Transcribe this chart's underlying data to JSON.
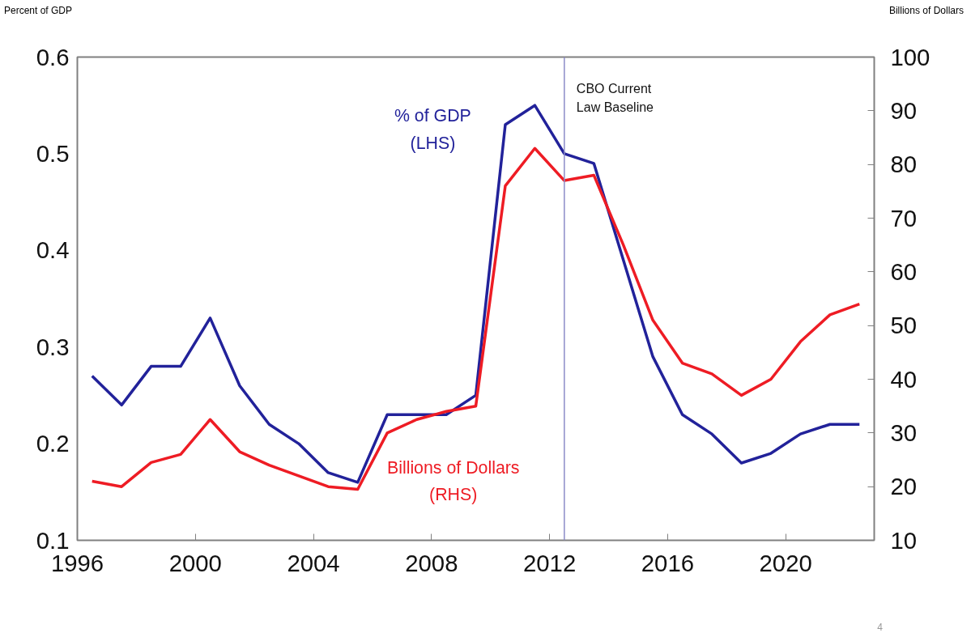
{
  "chart_data": {
    "type": "line",
    "ylabel": "Percent of GDP",
    "y2label": "Billions of Dollars",
    "x": [
      1996.5,
      1997.5,
      1998.5,
      1999.5,
      2000.5,
      2001.5,
      2002.5,
      2003.5,
      2004.5,
      2005.5,
      2006.5,
      2007.5,
      2008.5,
      2009.5,
      2010.5,
      2011.5,
      2012.5,
      2013.5,
      2014.5,
      2015.5,
      2016.5,
      2017.5,
      2018.5,
      2019.5,
      2020.5,
      2021.5,
      2022.5
    ],
    "series": [
      {
        "name": "% of GDP\n(LHS)",
        "color": "#22229a",
        "values": [
          0.27,
          0.24,
          0.28,
          0.28,
          0.33,
          0.26,
          0.22,
          0.2,
          0.17,
          0.16,
          0.23,
          0.23,
          0.23,
          0.25,
          0.53,
          0.55,
          0.5,
          0.49,
          0.39,
          0.29,
          0.23,
          0.21,
          0.18,
          0.19,
          0.21,
          0.22,
          0.22
        ]
      },
      {
        "name": "Billions of Dollars\n(RHS)",
        "color": "#ee1c24",
        "axis": "y2",
        "values": [
          21,
          20,
          24.5,
          26,
          32.5,
          26.5,
          24,
          22,
          20,
          19.5,
          30,
          32.5,
          34,
          35,
          76,
          83,
          77,
          78,
          65,
          51,
          43,
          41,
          37,
          40,
          47,
          52,
          54
        ]
      }
    ],
    "xlim": [
      1996,
      2023
    ],
    "xticks": [
      1996,
      2000,
      2004,
      2008,
      2012,
      2016,
      2020
    ],
    "ylim": [
      0.1,
      0.6
    ],
    "yticks": [
      0.1,
      0.2,
      0.3,
      0.4,
      0.5,
      0.6
    ],
    "y2lim": [
      10,
      100
    ],
    "y2ticks": [
      10,
      20,
      30,
      40,
      50,
      60,
      70,
      80,
      90,
      100
    ],
    "ref_lines": [
      {
        "axis": "x",
        "value": 2012.5,
        "label": "CBO Current\nLaw Baseline",
        "color": "#8c8cc8"
      }
    ],
    "annotations": [
      "4"
    ],
    "grid": false,
    "marker": "none",
    "line_style": "solid"
  }
}
